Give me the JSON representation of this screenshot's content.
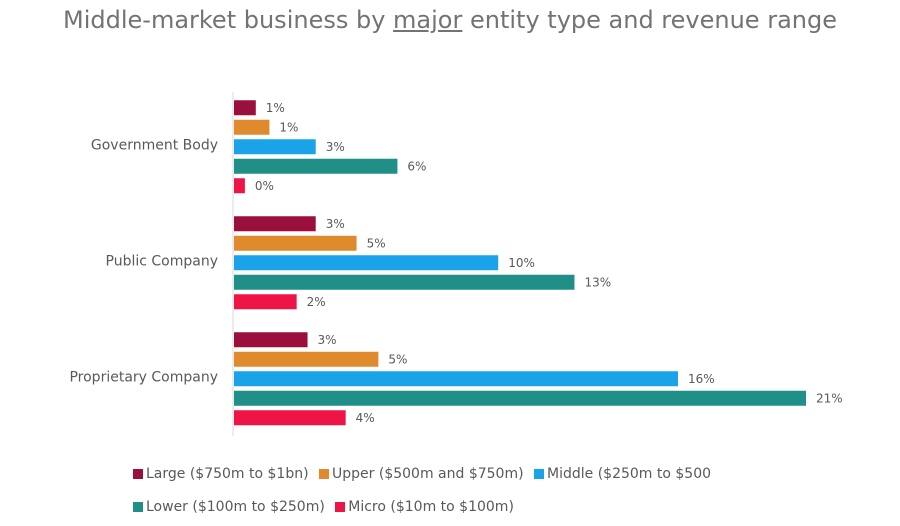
{
  "title": {
    "before": "Middle-market business by ",
    "underlined": "major",
    "after": " entity type and revenue range"
  },
  "colors": {
    "large": "#9b0f3c",
    "upper": "#e08a2e",
    "middle": "#1aa3e8",
    "lower": "#1f8f87",
    "micro": "#ee1446"
  },
  "chart_data": {
    "type": "bar",
    "orientation": "horizontal",
    "title": "Middle-market business by major entity type and revenue range",
    "categories": [
      "Government Body",
      "Public Company",
      "Proprietary Company"
    ],
    "series": [
      {
        "key": "large",
        "name": "Large ($750m to $1bn)",
        "values": [
          1,
          3,
          3
        ]
      },
      {
        "key": "upper",
        "name": "Upper ($500m and $750m)",
        "values": [
          1,
          5,
          5
        ]
      },
      {
        "key": "middle",
        "name": "Middle ($250m to $500",
        "values": [
          3,
          10,
          16
        ]
      },
      {
        "key": "lower",
        "name": "Lower ($100m to $250m)",
        "values": [
          6,
          13,
          21
        ]
      },
      {
        "key": "micro",
        "name": "Micro ($10m to $100m)",
        "values": [
          0,
          2,
          4
        ]
      }
    ],
    "plotted_values": [
      [
        0.8,
        3.0,
        2.7
      ],
      [
        1.3,
        4.5,
        5.3
      ],
      [
        3.0,
        9.7,
        16.3
      ],
      [
        6.0,
        12.5,
        21.0
      ],
      [
        0.4,
        2.3,
        4.1
      ]
    ],
    "labels": [
      [
        "1%",
        "3%",
        "3%"
      ],
      [
        "1%",
        "5%",
        "5%"
      ],
      [
        "3%",
        "10%",
        "16%"
      ],
      [
        "6%",
        "13%",
        "21%"
      ],
      [
        "0%",
        "2%",
        "4%"
      ]
    ],
    "unit": "%",
    "xlim": [
      0,
      21
    ],
    "legend_position": "bottom",
    "grid": false
  }
}
